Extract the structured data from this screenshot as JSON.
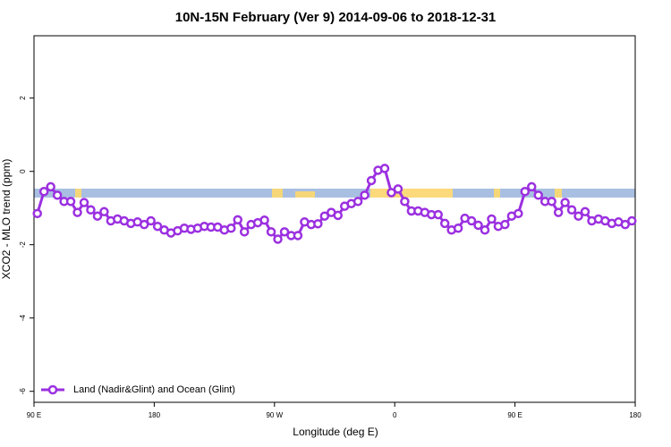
{
  "chart_data": {
    "type": "line",
    "title": "10N-15N February (Ver 9)   2014-09-06 to 2018-12-31",
    "x_label": "Longitude (deg E)",
    "y_label": "XCO2 - MLO trend (ppm)",
    "xlim": [
      90,
      540
    ],
    "xticks": [
      {
        "value": 90,
        "label": "90 E"
      },
      {
        "value": 180,
        "label": "180"
      },
      {
        "value": 270,
        "label": "90 W"
      },
      {
        "value": 360,
        "label": "0"
      },
      {
        "value": 450,
        "label": "90 E"
      },
      {
        "value": 540,
        "label": "180"
      }
    ],
    "ylim": [
      -6.3,
      3.7
    ],
    "yticks": [
      -6,
      -4,
      -2,
      0,
      2
    ],
    "legend": "lower left",
    "x": [
      92.5,
      97.5,
      102.5,
      107.5,
      112.5,
      117.5,
      122.5,
      127.5,
      132.5,
      137.5,
      142.5,
      147.5,
      152.5,
      157.5,
      162.5,
      167.5,
      172.5,
      177.5,
      182.5,
      187.5,
      192.5,
      197.5,
      202.5,
      207.5,
      212.5,
      217.5,
      222.5,
      227.5,
      232.5,
      237.5,
      242.5,
      247.5,
      252.5,
      257.5,
      262.5,
      267.5,
      272.5,
      277.5,
      282.5,
      287.5,
      292.5,
      297.5,
      302.5,
      307.5,
      312.5,
      317.5,
      322.5,
      327.5,
      332.5,
      337.5,
      342.5,
      347.5,
      352.5,
      357.5,
      362.5,
      367.5,
      372.5,
      377.5,
      382.5,
      387.5,
      392.5,
      397.5,
      402.5,
      407.5,
      412.5,
      417.5,
      422.5,
      427.5,
      432.5,
      437.5,
      442.5,
      447.5,
      452.5,
      457.5,
      462.5,
      467.5,
      472.5,
      477.5,
      482.5,
      487.5,
      492.5,
      497.5,
      502.5,
      507.5,
      512.5,
      517.5,
      522.5,
      527.5,
      532.5,
      537.5
    ],
    "series": [
      {
        "name": "Land (Nadir&Glint) and Ocean (Glint)",
        "color": "#9b30e0",
        "values": [
          -1.15,
          -0.55,
          -0.42,
          -0.65,
          -0.82,
          -0.82,
          -1.12,
          -0.85,
          -1.05,
          -1.22,
          -1.1,
          -1.35,
          -1.3,
          -1.35,
          -1.42,
          -1.38,
          -1.45,
          -1.35,
          -1.5,
          -1.6,
          -1.68,
          -1.62,
          -1.55,
          -1.58,
          -1.55,
          -1.5,
          -1.52,
          -1.52,
          -1.6,
          -1.55,
          -1.32,
          -1.65,
          -1.45,
          -1.4,
          -1.33,
          -1.65,
          -1.85,
          -1.65,
          -1.75,
          -1.75,
          -1.38,
          -1.45,
          -1.43,
          -1.22,
          -1.12,
          -1.2,
          -0.95,
          -0.88,
          -0.82,
          -0.65,
          -0.25,
          0.03,
          0.08,
          -0.58,
          -0.48,
          -0.82,
          -1.08,
          -1.08,
          -1.12,
          -1.18,
          -1.18,
          -1.42,
          -1.6,
          -1.55,
          -1.28,
          -1.35,
          -1.47,
          -1.6,
          -1.3,
          -1.5,
          -1.45,
          -1.22,
          -1.15,
          -0.55,
          -0.42,
          -0.65,
          -0.82,
          -0.82,
          -1.12,
          -0.85,
          -1.05,
          -1.22,
          -1.1,
          -1.35,
          -1.3,
          -1.35,
          -1.42,
          -1.38,
          -1.45,
          -1.35
        ]
      }
    ]
  }
}
